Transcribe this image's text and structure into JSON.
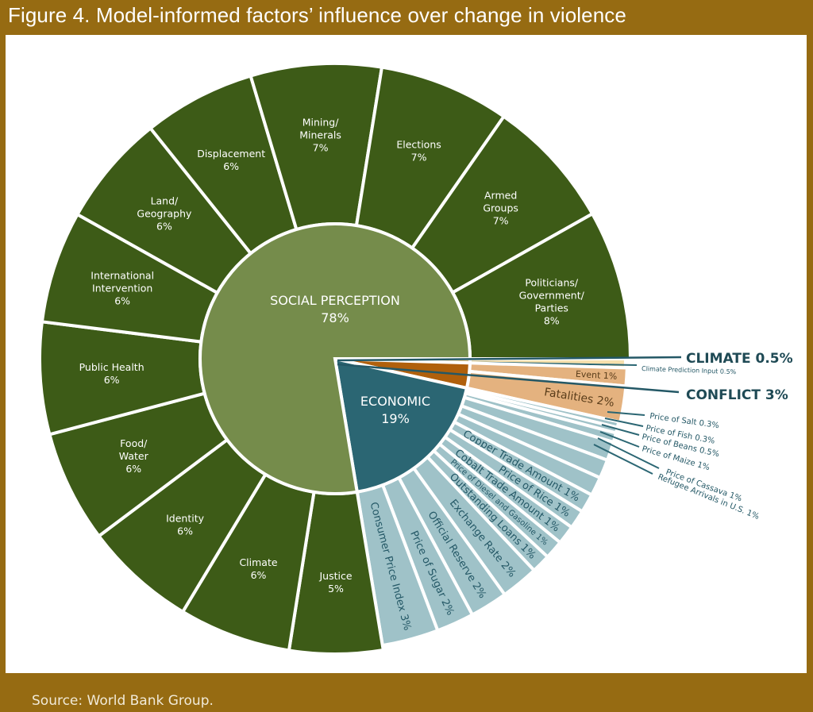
{
  "title": "Figure 4. Model-informed factors’ influence over change in violence",
  "source": "Source: World Bank Group.",
  "colors": {
    "frame": "#966b12",
    "social_outer": "#3d5b17",
    "social_inner": "#758c4b",
    "economic_inner": "#2b6673",
    "economic_outer": "#9fc2c8",
    "conflict_inner": "#b0600c",
    "conflict_outer": "#e4b27f",
    "climate_inner": "#e8c77e",
    "climate_outer": "#f6e0ad",
    "economic_text": "#245866"
  },
  "chart_data": {
    "type": "sunburst",
    "title": "Model-informed factors’ influence over change in violence",
    "unit": "%",
    "categories": [
      {
        "key": "climate",
        "name": "CLIMATE",
        "value": 0.5,
        "label": "CLIMATE 0.5%",
        "children": [
          {
            "name": "Climate Prediction Input",
            "value": 0.5,
            "label": "Climate Prediction Input 0.5%"
          }
        ]
      },
      {
        "key": "conflict",
        "name": "CONFLICT",
        "value": 3,
        "label": "CONFLICT 3%",
        "children": [
          {
            "name": "Event",
            "value": 1,
            "label": "Event 1%"
          },
          {
            "name": "Fatalities",
            "value": 2,
            "label": "Fatalities 2%"
          }
        ]
      },
      {
        "key": "economic",
        "name": "ECONOMIC",
        "value": 19,
        "label": "ECONOMIC",
        "pct": "19%",
        "children": [
          {
            "name": "Price of Salt",
            "value": 0.3,
            "label": "Price of Salt 0.3%"
          },
          {
            "name": "Price of Fish",
            "value": 0.3,
            "label": "Price of Fish 0.3%"
          },
          {
            "name": "Price of Beans",
            "value": 0.5,
            "label": "Price of Beans 0.5%"
          },
          {
            "name": "Price of Maize",
            "value": 1,
            "label": "Price of Maize 1%"
          },
          {
            "name": "Price of Cassava",
            "value": 1,
            "label": "Price of Cassava 1%"
          },
          {
            "name": "Refugee Arrivals in U.S.",
            "value": 1,
            "label": "Refugee Arrivals in U.S. 1%"
          },
          {
            "name": "Copper Trade Amount",
            "value": 1,
            "label": "Copper Trade Amount 1%"
          },
          {
            "name": "Price of Rice",
            "value": 1,
            "label": "Price of Rice 1%"
          },
          {
            "name": "Cobalt Trade Amount",
            "value": 1,
            "label": "Cobalt Trade Amount 1%"
          },
          {
            "name": "Price of Diesel and Gasoline",
            "value": 1,
            "label": "Price of Diesel and Gasoline 1%"
          },
          {
            "name": "Outstanding Loans",
            "value": 1,
            "label": "Outstanding Loans 1%"
          },
          {
            "name": "Exchange Rate",
            "value": 2,
            "label": "Exchange Rate 2%"
          },
          {
            "name": "Official Reserve",
            "value": 2,
            "label": "Official Reserve 2%"
          },
          {
            "name": "Price of Sugar",
            "value": 2,
            "label": "Price of Sugar 2%"
          },
          {
            "name": "Consumer Price Index",
            "value": 3,
            "label": "Consumer Price Index 3%"
          }
        ]
      },
      {
        "key": "social",
        "name": "SOCIAL PERCEPTION",
        "value": 78,
        "label": "SOCIAL PERCEPTION",
        "pct": "78%",
        "children": [
          {
            "name": "Justice",
            "value": 5,
            "lines": [
              "Justice",
              "5%"
            ]
          },
          {
            "name": "Climate",
            "value": 6,
            "lines": [
              "Climate",
              "6%"
            ]
          },
          {
            "name": "Identity",
            "value": 6,
            "lines": [
              "Identity",
              "6%"
            ]
          },
          {
            "name": "Food/Water",
            "value": 6,
            "lines": [
              "Food/",
              "Water",
              "6%"
            ]
          },
          {
            "name": "Public Health",
            "value": 6,
            "lines": [
              "Public Health",
              "6%"
            ]
          },
          {
            "name": "International Intervention",
            "value": 6,
            "lines": [
              "International",
              "Intervention",
              "6%"
            ]
          },
          {
            "name": "Land/Geography",
            "value": 6,
            "lines": [
              "Land/",
              "Geography",
              "6%"
            ]
          },
          {
            "name": "Displacement",
            "value": 6,
            "lines": [
              "Displacement",
              "6%"
            ]
          },
          {
            "name": "Mining/Minerals",
            "value": 7,
            "lines": [
              "Mining/",
              "Minerals",
              "7%"
            ]
          },
          {
            "name": "Elections",
            "value": 7,
            "lines": [
              "Elections",
              "7%"
            ]
          },
          {
            "name": "Armed Groups",
            "value": 7,
            "lines": [
              "Armed",
              "Groups",
              "7%"
            ]
          },
          {
            "name": "Politicians/Government/Parties",
            "value": 8,
            "lines": [
              "Politicians/",
              "Government/",
              "Parties",
              "8%"
            ]
          }
        ]
      }
    ]
  }
}
